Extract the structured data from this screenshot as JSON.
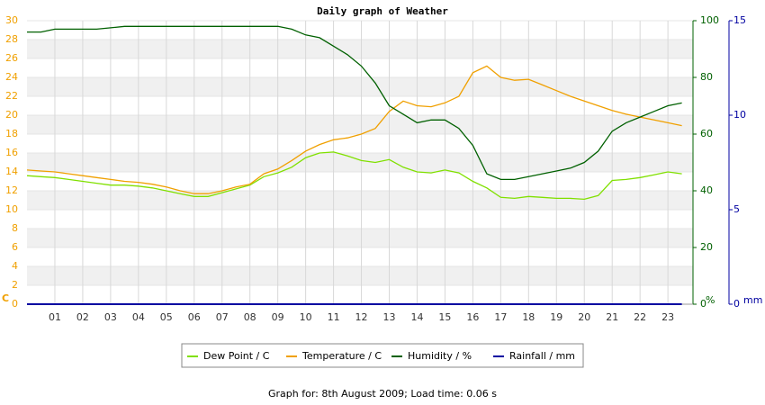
{
  "chart_data": {
    "type": "line",
    "title": "Daily graph of Weather",
    "footer": "Graph for: 8th August 2009; Load time: 0.06 s",
    "y_label": "C",
    "y2_label": "%",
    "y3_label": "mm",
    "xlim": [
      0,
      23.9
    ],
    "xticks": [
      {
        "value": 1,
        "label": "01"
      },
      {
        "value": 2,
        "label": "02"
      },
      {
        "value": 3,
        "label": "03"
      },
      {
        "value": 4,
        "label": "04"
      },
      {
        "value": 5,
        "label": "05"
      },
      {
        "value": 6,
        "label": "06"
      },
      {
        "value": 7,
        "label": "07"
      },
      {
        "value": 8,
        "label": "08"
      },
      {
        "value": 9,
        "label": "09"
      },
      10,
      11,
      12,
      13,
      14,
      15,
      16,
      17,
      18,
      19,
      20,
      21,
      22,
      23
    ],
    "ylim": [
      0,
      30
    ],
    "yticks": [
      0,
      2,
      4,
      6,
      8,
      10,
      12,
      14,
      16,
      18,
      20,
      22,
      24,
      26,
      28,
      30
    ],
    "y2lim": [
      0,
      100
    ],
    "y2ticks": [
      0,
      20,
      40,
      60,
      80,
      100
    ],
    "y3lim": [
      0,
      15
    ],
    "y3ticks": [
      0,
      5,
      10,
      15
    ],
    "grid": true,
    "x": [
      0,
      0.5,
      1,
      1.5,
      2,
      2.5,
      3,
      3.5,
      4,
      4.5,
      5,
      5.5,
      6,
      6.5,
      7,
      7.5,
      8,
      8.5,
      9,
      9.5,
      10,
      10.5,
      11,
      11.5,
      12,
      12.5,
      13,
      13.5,
      14,
      14.5,
      15,
      15.5,
      16,
      16.5,
      17,
      17.5,
      18,
      18.5,
      19,
      19.5,
      20,
      20.5,
      21,
      21.5,
      22,
      22.5,
      23,
      23.5
    ],
    "series": [
      {
        "name": "Dew Point / C",
        "color": "#80e000",
        "axis": "y",
        "values": [
          13.6,
          13.5,
          13.4,
          13.2,
          13.0,
          12.8,
          12.6,
          12.6,
          12.5,
          12.3,
          12.0,
          11.7,
          11.4,
          11.4,
          11.8,
          12.2,
          12.6,
          13.5,
          13.9,
          14.5,
          15.5,
          16.0,
          16.1,
          15.7,
          15.2,
          15.0,
          15.3,
          14.5,
          14.0,
          13.9,
          14.2,
          13.9,
          13.0,
          12.3,
          11.3,
          11.2,
          11.4,
          11.3,
          11.2,
          11.2,
          11.1,
          11.5,
          13.1,
          13.2,
          13.4,
          13.7,
          14.0,
          13.8
        ]
      },
      {
        "name": "Temperature / C",
        "color": "#f0a000",
        "axis": "y",
        "values": [
          14.2,
          14.1,
          14.0,
          13.8,
          13.6,
          13.4,
          13.2,
          13.0,
          12.9,
          12.7,
          12.4,
          12.0,
          11.7,
          11.7,
          12.0,
          12.4,
          12.7,
          13.8,
          14.3,
          15.2,
          16.2,
          16.9,
          17.4,
          17.6,
          18.0,
          18.6,
          20.4,
          21.5,
          21.0,
          20.9,
          21.3,
          22.0,
          24.5,
          25.2,
          24.0,
          23.7,
          23.8,
          23.2,
          22.6,
          22.0,
          21.5,
          21.0,
          20.5,
          20.1,
          19.8,
          19.5,
          19.2,
          18.9
        ]
      },
      {
        "name": "Humidity / %",
        "color": "#006000",
        "axis": "y2",
        "values": [
          96,
          96,
          97,
          97,
          97,
          97,
          97.5,
          98,
          98,
          98,
          98,
          98,
          98,
          98,
          98,
          98,
          98,
          98,
          98,
          97,
          95,
          94,
          91,
          88,
          84,
          78,
          70,
          67,
          64,
          65,
          65,
          62,
          56,
          46,
          44,
          44,
          45,
          46,
          47,
          48,
          50,
          54,
          61,
          64,
          66,
          68,
          70,
          71
        ]
      },
      {
        "name": "Rainfall / mm",
        "color": "#0000a0",
        "axis": "y3",
        "values": [
          0,
          0,
          0,
          0,
          0,
          0,
          0,
          0,
          0,
          0,
          0,
          0,
          0,
          0,
          0,
          0,
          0,
          0,
          0,
          0,
          0,
          0,
          0,
          0,
          0,
          0,
          0,
          0,
          0,
          0,
          0,
          0,
          0,
          0,
          0,
          0,
          0,
          0,
          0,
          0,
          0,
          0,
          0,
          0,
          0,
          0,
          0,
          0
        ]
      }
    ]
  }
}
